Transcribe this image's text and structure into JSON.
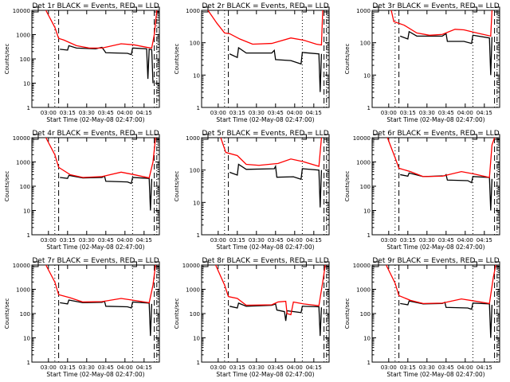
{
  "chart_data": {
    "type": "line",
    "layout": "3x3 grid",
    "xlabel": "Start Time (02-May-08 02:47:00)",
    "ylabel": "Counts/sec",
    "x_units": "minutes since 02:47:00",
    "xlim": [
      0,
      100
    ],
    "x_ticks": [
      {
        "v": 13,
        "label": "03:00"
      },
      {
        "v": 28,
        "label": "03:15"
      },
      {
        "v": 43,
        "label": "03:30"
      },
      {
        "v": 58,
        "label": "03:45"
      },
      {
        "v": 73,
        "label": "04:00"
      },
      {
        "v": 88,
        "label": "04:15"
      }
    ],
    "yscale": "log",
    "colors": {
      "events": "#000000",
      "lld": "#ff0000"
    },
    "markers": {
      "dotted": [
        18,
        79
      ],
      "dashed": [
        21,
        96
      ],
      "dashdot": [
        98
      ]
    },
    "panels": [
      {
        "title": "Det 1r BLACK = Events, RED = LLD",
        "ylim": [
          1,
          10000
        ],
        "y_ticks": [
          "1",
          "10",
          "100",
          "1000",
          "10000"
        ],
        "lld": [
          [
            11,
            10000
          ],
          [
            18,
            2000
          ],
          [
            21,
            700
          ],
          [
            25,
            600
          ],
          [
            35,
            350
          ],
          [
            45,
            280
          ],
          [
            55,
            280
          ],
          [
            70,
            420
          ],
          [
            80,
            380
          ],
          [
            90,
            300
          ],
          [
            94,
            280
          ],
          [
            96,
            1000
          ],
          [
            98,
            10000
          ]
        ],
        "events": [
          [
            22,
            250
          ],
          [
            28,
            230
          ],
          [
            29,
            350
          ],
          [
            35,
            280
          ],
          [
            50,
            260
          ],
          [
            55,
            300
          ],
          [
            58,
            180
          ],
          [
            75,
            170
          ],
          [
            78,
            150
          ],
          [
            79,
            280
          ],
          [
            90,
            260
          ],
          [
            91,
            15
          ],
          [
            92,
            250
          ],
          [
            94,
            240
          ],
          [
            95,
            10
          ]
        ]
      },
      {
        "title": "Det 2r BLACK = Events, RED = LLD",
        "ylim": [
          1,
          1000
        ],
        "y_ticks": [
          "1",
          "10",
          "100",
          "1000"
        ],
        "lld": [
          [
            5,
            1000
          ],
          [
            12,
            400
          ],
          [
            18,
            200
          ],
          [
            22,
            190
          ],
          [
            30,
            130
          ],
          [
            40,
            90
          ],
          [
            55,
            95
          ],
          [
            70,
            140
          ],
          [
            80,
            120
          ],
          [
            90,
            90
          ],
          [
            94,
            85
          ],
          [
            95,
            1000
          ]
        ],
        "events": [
          [
            22,
            45
          ],
          [
            28,
            35
          ],
          [
            29,
            70
          ],
          [
            35,
            48
          ],
          [
            55,
            48
          ],
          [
            57,
            58
          ],
          [
            58,
            30
          ],
          [
            70,
            28
          ],
          [
            78,
            22
          ],
          [
            79,
            50
          ],
          [
            92,
            45
          ],
          [
            93,
            3
          ],
          [
            94,
            45
          ]
        ]
      },
      {
        "title": "Det 3r BLACK = Events, RED = LLD",
        "ylim": [
          1,
          1000
        ],
        "y_ticks": [
          "1",
          "10",
          "100",
          "1000"
        ],
        "lld": [
          [
            15,
            1000
          ],
          [
            17,
            450
          ],
          [
            25,
            350
          ],
          [
            35,
            200
          ],
          [
            45,
            170
          ],
          [
            55,
            180
          ],
          [
            65,
            260
          ],
          [
            72,
            250
          ],
          [
            82,
            200
          ],
          [
            93,
            160
          ],
          [
            94,
            1000
          ]
        ],
        "events": [
          [
            22,
            160
          ],
          [
            28,
            130
          ],
          [
            29,
            220
          ],
          [
            35,
            160
          ],
          [
            55,
            160
          ],
          [
            58,
            190
          ],
          [
            59,
            110
          ],
          [
            72,
            110
          ],
          [
            78,
            95
          ],
          [
            79,
            170
          ],
          [
            92,
            140
          ],
          [
            93,
            10
          ],
          [
            94,
            150
          ]
        ]
      },
      {
        "title": "Det 4r BLACK = Events, RED = LLD",
        "ylim": [
          1,
          10000
        ],
        "y_ticks": [
          "1",
          "10",
          "100",
          "1000",
          "10000"
        ],
        "lld": [
          [
            11,
            10000
          ],
          [
            18,
            2000
          ],
          [
            21,
            600
          ],
          [
            30,
            300
          ],
          [
            40,
            230
          ],
          [
            55,
            250
          ],
          [
            70,
            380
          ],
          [
            80,
            300
          ],
          [
            92,
            220
          ],
          [
            95,
            1000
          ],
          [
            97,
            10000
          ]
        ],
        "events": [
          [
            22,
            230
          ],
          [
            28,
            210
          ],
          [
            29,
            280
          ],
          [
            40,
            220
          ],
          [
            55,
            230
          ],
          [
            57,
            260
          ],
          [
            58,
            160
          ],
          [
            75,
            150
          ],
          [
            78,
            130
          ],
          [
            79,
            230
          ],
          [
            92,
            210
          ],
          [
            93,
            10
          ],
          [
            94,
            200
          ]
        ]
      },
      {
        "title": "Det 5r BLACK = Events, RED = LLD",
        "ylim": [
          1,
          1000
        ],
        "y_ticks": [
          "1",
          "10",
          "100",
          "1000"
        ],
        "lld": [
          [
            15,
            1000
          ],
          [
            19,
            350
          ],
          [
            28,
            280
          ],
          [
            35,
            150
          ],
          [
            45,
            140
          ],
          [
            60,
            160
          ],
          [
            70,
            220
          ],
          [
            80,
            180
          ],
          [
            92,
            130
          ],
          [
            94,
            1000
          ]
        ],
        "events": [
          [
            22,
            85
          ],
          [
            28,
            70
          ],
          [
            29,
            150
          ],
          [
            35,
            105
          ],
          [
            57,
            110
          ],
          [
            58,
            130
          ],
          [
            59,
            60
          ],
          [
            72,
            62
          ],
          [
            78,
            52
          ],
          [
            79,
            110
          ],
          [
            92,
            100
          ],
          [
            93,
            7
          ],
          [
            94,
            100
          ]
        ]
      },
      {
        "title": "Det 6r BLACK = Events, RED = LLD",
        "ylim": [
          1,
          10000
        ],
        "y_ticks": [
          "1",
          "10",
          "100",
          "1000",
          "10000"
        ],
        "lld": [
          [
            12,
            10000
          ],
          [
            18,
            1500
          ],
          [
            21,
            550
          ],
          [
            30,
            400
          ],
          [
            40,
            250
          ],
          [
            55,
            260
          ],
          [
            70,
            400
          ],
          [
            80,
            320
          ],
          [
            92,
            230
          ],
          [
            94,
            5000
          ],
          [
            96,
            10000
          ]
        ],
        "events": [
          [
            22,
            300
          ],
          [
            28,
            260
          ],
          [
            29,
            350
          ],
          [
            40,
            250
          ],
          [
            57,
            270
          ],
          [
            58,
            300
          ],
          [
            59,
            180
          ],
          [
            75,
            170
          ],
          [
            78,
            140
          ],
          [
            79,
            250
          ],
          [
            92,
            230
          ],
          [
            93,
            10
          ],
          [
            94,
            200
          ]
        ]
      },
      {
        "title": "Det 7r BLACK = Events, RED = LLD",
        "ylim": [
          1,
          10000
        ],
        "y_ticks": [
          "1",
          "10",
          "100",
          "1000",
          "10000"
        ],
        "lld": [
          [
            11,
            10000
          ],
          [
            18,
            2000
          ],
          [
            21,
            600
          ],
          [
            30,
            450
          ],
          [
            40,
            300
          ],
          [
            55,
            310
          ],
          [
            70,
            420
          ],
          [
            80,
            350
          ],
          [
            92,
            280
          ],
          [
            95,
            1500
          ],
          [
            97,
            10000
          ]
        ],
        "events": [
          [
            22,
            280
          ],
          [
            28,
            250
          ],
          [
            29,
            360
          ],
          [
            40,
            280
          ],
          [
            55,
            290
          ],
          [
            57,
            320
          ],
          [
            58,
            200
          ],
          [
            75,
            190
          ],
          [
            78,
            170
          ],
          [
            79,
            300
          ],
          [
            92,
            270
          ],
          [
            93,
            12
          ],
          [
            94,
            250
          ]
        ]
      },
      {
        "title": "Det 8r BLACK = Events, RED = LLD",
        "ylim": [
          1,
          10000
        ],
        "y_ticks": [
          "1",
          "10",
          "100",
          "1000",
          "10000"
        ],
        "lld": [
          [
            11,
            10000
          ],
          [
            18,
            1500
          ],
          [
            21,
            500
          ],
          [
            28,
            420
          ],
          [
            35,
            220
          ],
          [
            55,
            230
          ],
          [
            60,
            300
          ],
          [
            66,
            320
          ],
          [
            67,
            100
          ],
          [
            70,
            90
          ],
          [
            72,
            300
          ],
          [
            80,
            250
          ],
          [
            92,
            210
          ],
          [
            95,
            2000
          ],
          [
            97,
            10000
          ]
        ],
        "events": [
          [
            22,
            200
          ],
          [
            28,
            170
          ],
          [
            29,
            270
          ],
          [
            35,
            200
          ],
          [
            55,
            220
          ],
          [
            58,
            250
          ],
          [
            59,
            140
          ],
          [
            65,
            120
          ],
          [
            66,
            50
          ],
          [
            67,
            130
          ],
          [
            78,
            110
          ],
          [
            79,
            200
          ],
          [
            92,
            190
          ],
          [
            93,
            12
          ],
          [
            94,
            180
          ]
        ]
      },
      {
        "title": "Det 9r BLACK = Events, RED = LLD",
        "ylim": [
          1,
          10000
        ],
        "y_ticks": [
          "1",
          "10",
          "100",
          "1000",
          "10000"
        ],
        "lld": [
          [
            11,
            10000
          ],
          [
            18,
            1800
          ],
          [
            21,
            550
          ],
          [
            30,
            350
          ],
          [
            40,
            260
          ],
          [
            55,
            270
          ],
          [
            70,
            400
          ],
          [
            80,
            330
          ],
          [
            92,
            260
          ],
          [
            95,
            3000
          ],
          [
            97,
            10000
          ]
        ],
        "events": [
          [
            22,
            260
          ],
          [
            28,
            230
          ],
          [
            29,
            330
          ],
          [
            40,
            250
          ],
          [
            55,
            260
          ],
          [
            57,
            290
          ],
          [
            58,
            180
          ],
          [
            75,
            170
          ],
          [
            78,
            150
          ],
          [
            79,
            270
          ],
          [
            92,
            250
          ],
          [
            93,
            10
          ],
          [
            94,
            230
          ]
        ]
      }
    ]
  }
}
